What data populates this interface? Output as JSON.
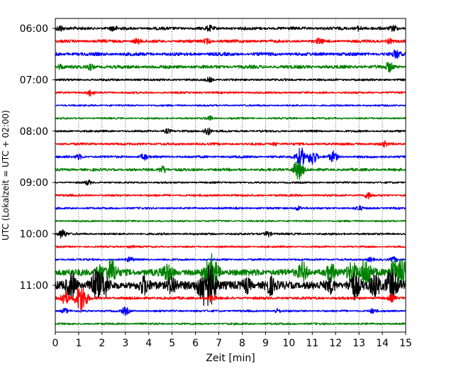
{
  "chart_data": {
    "type": "line",
    "xlabel": "Zeit  [min]",
    "ylabel": "UTC (Lokalzeit = UTC + 02:00)",
    "xlim": [
      0,
      15
    ],
    "x_ticks": [
      0,
      1,
      2,
      3,
      4,
      5,
      6,
      7,
      8,
      9,
      10,
      11,
      12,
      13,
      14,
      15
    ],
    "x_tick_labels": [
      "0",
      "1",
      "2",
      "3",
      "4",
      "5",
      "6",
      "7",
      "8",
      "9",
      "10",
      "11",
      "12",
      "13",
      "14",
      "15"
    ],
    "y_tick_labels": [
      "06:00",
      "07:00",
      "08:00",
      "09:00",
      "10:00",
      "11:00"
    ],
    "grid": "vertical dotted at each minute",
    "trace_interval_minutes": 15,
    "start_time_utc": "06:00",
    "colors": [
      "#000000",
      "#ff0000",
      "#0000ff",
      "#008000"
    ],
    "traces": [
      {
        "start": "06:00",
        "color": "#000000",
        "amp": 2.2,
        "events": [
          [
            0.2,
            4
          ],
          [
            2.5,
            3
          ],
          [
            6.6,
            3
          ],
          [
            13.0,
            3
          ],
          [
            14.5,
            4
          ]
        ]
      },
      {
        "start": "06:15",
        "color": "#ff0000",
        "amp": 2.2,
        "events": [
          [
            3.5,
            3
          ],
          [
            6.5,
            3
          ],
          [
            11.3,
            3
          ],
          [
            14.3,
            3
          ]
        ]
      },
      {
        "start": "06:30",
        "color": "#0000ff",
        "amp": 2.5,
        "events": [
          [
            14.6,
            5
          ]
        ]
      },
      {
        "start": "06:45",
        "color": "#008000",
        "amp": 2.5,
        "events": [
          [
            0.2,
            3
          ],
          [
            1.5,
            3
          ],
          [
            14.3,
            6
          ]
        ]
      },
      {
        "start": "07:00",
        "color": "#000000",
        "amp": 1.6,
        "events": [
          [
            6.6,
            3
          ]
        ]
      },
      {
        "start": "07:15",
        "color": "#ff0000",
        "amp": 1.5,
        "events": [
          [
            1.5,
            4
          ]
        ]
      },
      {
        "start": "07:30",
        "color": "#0000ff",
        "amp": 1.3,
        "events": []
      },
      {
        "start": "07:45",
        "color": "#008000",
        "amp": 1.3,
        "events": [
          [
            6.6,
            3
          ]
        ]
      },
      {
        "start": "08:00",
        "color": "#000000",
        "amp": 1.5,
        "events": [
          [
            6.5,
            6
          ],
          [
            4.8,
            3
          ]
        ]
      },
      {
        "start": "08:15",
        "color": "#ff0000",
        "amp": 1.8,
        "events": [
          [
            14.1,
            3
          ],
          [
            9.4,
            2
          ]
        ]
      },
      {
        "start": "08:30",
        "color": "#0000ff",
        "amp": 1.8,
        "events": [
          [
            1.0,
            3
          ],
          [
            3.8,
            4
          ],
          [
            10.5,
            13
          ],
          [
            11.0,
            11
          ],
          [
            11.9,
            7
          ]
        ]
      },
      {
        "start": "08:45",
        "color": "#008000",
        "amp": 2.0,
        "events": [
          [
            4.6,
            5
          ],
          [
            10.4,
            14
          ]
        ]
      },
      {
        "start": "09:00",
        "color": "#000000",
        "amp": 1.3,
        "events": [
          [
            1.4,
            3
          ]
        ]
      },
      {
        "start": "09:15",
        "color": "#ff0000",
        "amp": 1.6,
        "events": [
          [
            13.4,
            4
          ]
        ]
      },
      {
        "start": "09:30",
        "color": "#0000ff",
        "amp": 1.5,
        "events": [
          [
            10.4,
            3
          ],
          [
            13.0,
            3
          ]
        ]
      },
      {
        "start": "09:45",
        "color": "#008000",
        "amp": 1.3,
        "events": []
      },
      {
        "start": "10:00",
        "color": "#000000",
        "amp": 1.5,
        "events": [
          [
            0.3,
            6
          ],
          [
            9.1,
            4
          ]
        ]
      },
      {
        "start": "10:15",
        "color": "#ff0000",
        "amp": 1.3,
        "events": [
          [
            3.2,
            2
          ]
        ]
      },
      {
        "start": "10:30",
        "color": "#0000ff",
        "amp": 1.5,
        "events": [
          [
            3.2,
            3
          ],
          [
            13.5,
            3
          ],
          [
            14.5,
            3
          ]
        ]
      },
      {
        "start": "10:45",
        "color": "#008000",
        "amp": 5.0,
        "events": [
          [
            1.9,
            10
          ],
          [
            2.4,
            15
          ],
          [
            4.8,
            12
          ],
          [
            6.7,
            22
          ],
          [
            10.6,
            12
          ],
          [
            11.8,
            10
          ],
          [
            12.7,
            14
          ],
          [
            13.3,
            18
          ],
          [
            14.5,
            14
          ],
          [
            14.9,
            18
          ]
        ]
      },
      {
        "start": "11:00",
        "color": "#000000",
        "amp": 6.0,
        "events": [
          [
            0.7,
            14
          ],
          [
            1.7,
            18
          ],
          [
            2.1,
            12
          ],
          [
            3.8,
            10
          ],
          [
            5.0,
            12
          ],
          [
            6.3,
            16
          ],
          [
            6.6,
            26
          ],
          [
            8.2,
            8
          ],
          [
            9.2,
            10
          ],
          [
            11.8,
            8
          ],
          [
            12.8,
            16
          ],
          [
            13.7,
            14
          ],
          [
            14.4,
            20
          ]
        ]
      },
      {
        "start": "11:15",
        "color": "#ff0000",
        "amp": 2.0,
        "events": [
          [
            0.4,
            10
          ],
          [
            1.1,
            20
          ],
          [
            6.7,
            4
          ],
          [
            14.4,
            4
          ]
        ]
      },
      {
        "start": "11:30",
        "color": "#0000ff",
        "amp": 1.5,
        "events": [
          [
            0.4,
            3
          ],
          [
            3.0,
            5
          ],
          [
            9.5,
            3
          ],
          [
            13.6,
            3
          ]
        ]
      },
      {
        "start": "11:45",
        "color": "#008000",
        "amp": 1.5,
        "events": []
      }
    ]
  }
}
